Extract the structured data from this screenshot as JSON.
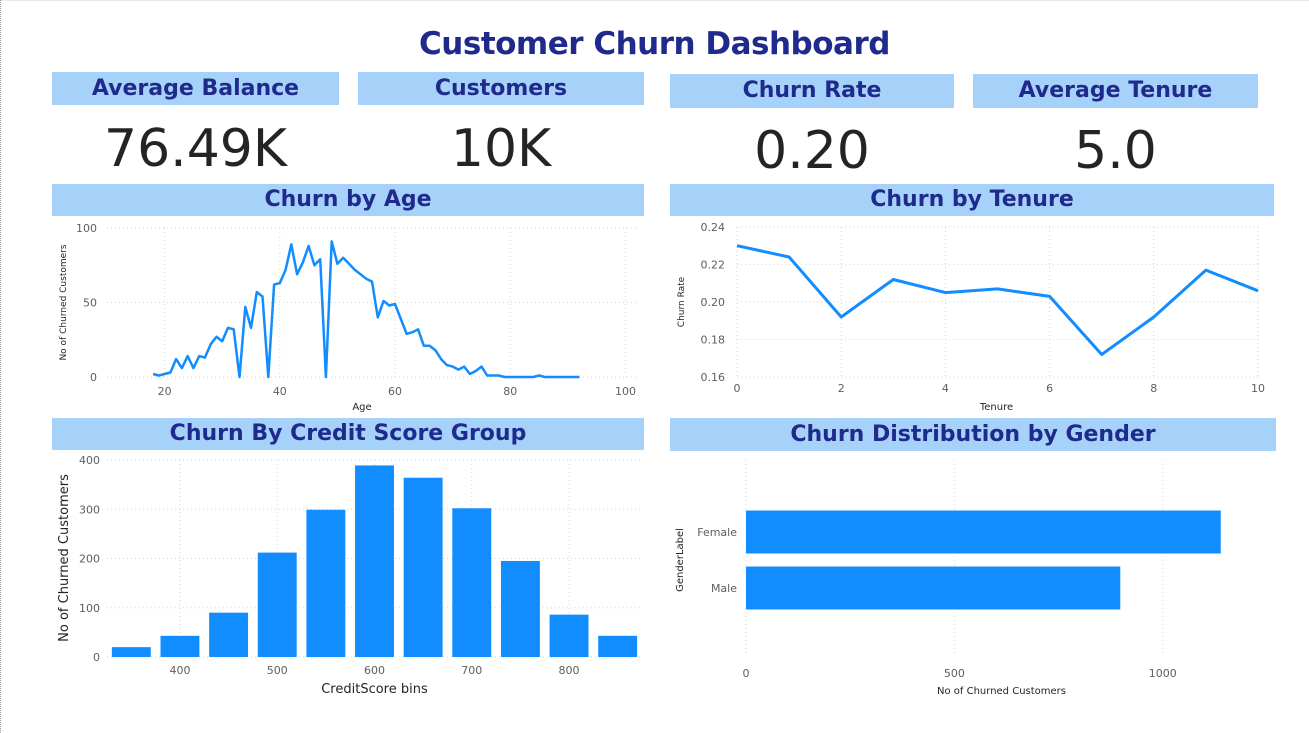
{
  "header": {
    "title": "Customer Churn Dashboard"
  },
  "kpis": [
    {
      "label": "Average Balance",
      "value": "76.49K"
    },
    {
      "label": "Customers",
      "value": "10K"
    },
    {
      "label": "Churn Rate",
      "value": "0.20"
    },
    {
      "label": "Average Tenure",
      "value": "5.0"
    }
  ],
  "colors": {
    "accent": "#118dff",
    "banner_bg": "#a6d2fa",
    "banner_text": "#1f2a8c",
    "value_text": "#252423"
  },
  "chart_data": [
    {
      "id": "age",
      "type": "line",
      "title": "Churn by Age",
      "xlabel": "Age",
      "ylabel": "No of Churned Customers",
      "xlim": [
        10,
        102
      ],
      "ylim": [
        0,
        100
      ],
      "xticks": [
        20,
        40,
        60,
        80,
        100
      ],
      "yticks": [
        0,
        50,
        100
      ],
      "grid": true,
      "x": [
        18,
        19,
        20,
        21,
        22,
        23,
        24,
        25,
        26,
        27,
        28,
        29,
        30,
        31,
        32,
        33,
        34,
        35,
        36,
        37,
        38,
        39,
        40,
        41,
        42,
        43,
        44,
        45,
        46,
        47,
        48,
        49,
        50,
        51,
        52,
        53,
        54,
        55,
        56,
        57,
        58,
        59,
        60,
        61,
        62,
        63,
        64,
        65,
        66,
        67,
        68,
        69,
        70,
        71,
        72,
        73,
        74,
        75,
        76,
        77,
        78,
        79,
        80,
        81,
        82,
        83,
        84,
        85,
        86,
        87,
        88,
        89,
        90,
        91,
        92
      ],
      "y": [
        2,
        1,
        2,
        3,
        12,
        6,
        14,
        6,
        14,
        13,
        22,
        27,
        24,
        33,
        32,
        0,
        47,
        33,
        57,
        54,
        0,
        62,
        63,
        72,
        89,
        69,
        77,
        88,
        75,
        79,
        0,
        91,
        76,
        80,
        76,
        72,
        69,
        66,
        64,
        40,
        51,
        48,
        49,
        39,
        29,
        30,
        32,
        21,
        21,
        18,
        12,
        8,
        7,
        5,
        7,
        2,
        4,
        7,
        1,
        1,
        1,
        0,
        0,
        0,
        0,
        0,
        0,
        1,
        0,
        0,
        0,
        0,
        0,
        0,
        0
      ]
    },
    {
      "id": "tenure",
      "type": "line",
      "title": "Churn by Tenure",
      "xlabel": "Tenure",
      "ylabel": "Churn Rate",
      "xlim": [
        0,
        10
      ],
      "ylim": [
        0.16,
        0.24
      ],
      "xticks": [
        0,
        2,
        4,
        6,
        8,
        10
      ],
      "yticks": [
        "0.16",
        "0.18",
        "0.20",
        "0.22",
        "0.24"
      ],
      "grid": true,
      "x": [
        0,
        1,
        2,
        3,
        4,
        5,
        6,
        7,
        8,
        9,
        10
      ],
      "y": [
        0.23,
        0.224,
        0.192,
        0.212,
        0.205,
        0.207,
        0.203,
        0.172,
        0.192,
        0.217,
        0.206
      ]
    },
    {
      "id": "credit",
      "type": "bar",
      "title": "Churn By Credit Score Group",
      "xlabel": "CreditScore bins",
      "ylabel": "No of Churned Customers",
      "xlim": [
        325,
        875
      ],
      "ylim": [
        0,
        400
      ],
      "xticks": [
        400,
        500,
        600,
        700,
        800
      ],
      "yticks": [
        0,
        100,
        200,
        300,
        400
      ],
      "grid": true,
      "categories": [
        350,
        400,
        450,
        500,
        550,
        600,
        650,
        700,
        750,
        800,
        850
      ],
      "values": [
        20,
        43,
        90,
        212,
        299,
        389,
        364,
        302,
        195,
        86,
        43
      ]
    },
    {
      "id": "gender",
      "type": "bar",
      "orientation": "horizontal",
      "title": "Churn Distribution by Gender",
      "xlabel": "No of Churned Customers",
      "ylabel": "GenderLabel",
      "xlim": [
        0,
        1250
      ],
      "xticks": [
        0,
        500,
        1000
      ],
      "grid": true,
      "categories": [
        "Female",
        "Male"
      ],
      "values": [
        1139,
        898
      ]
    }
  ]
}
